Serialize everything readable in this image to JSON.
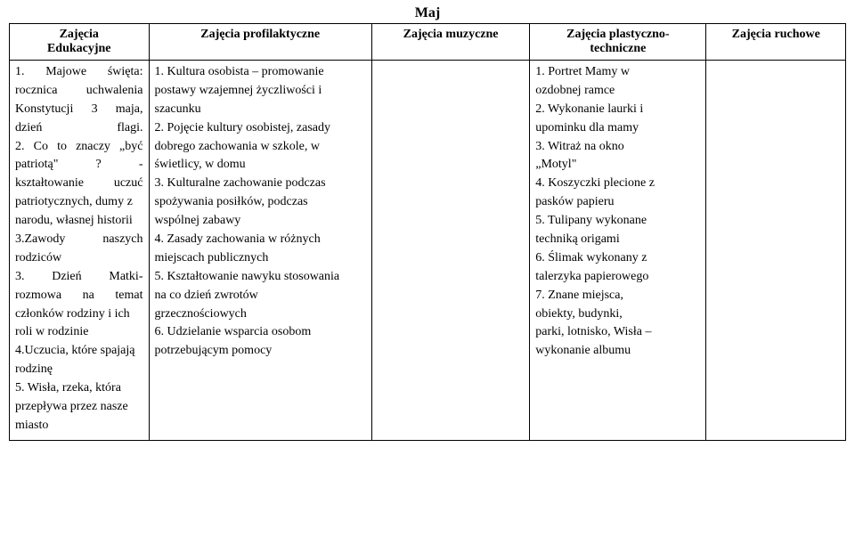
{
  "month": "Maj",
  "headers": {
    "col1_line1": "Zajęcia",
    "col1_line2": "Edukacyjne",
    "col2": "Zajęcia profilaktyczne",
    "col3": "Zajęcia muzyczne",
    "col4_line1": "Zajęcia plastyczno-",
    "col4_line2": "techniczne",
    "col5": "Zajęcia ruchowe"
  },
  "col1": {
    "l1a": "1.",
    "l1b": "Majowe",
    "l1c": "święta:",
    "l2a": "rocznica",
    "l2b": "uchwalenia",
    "l3a": "Konstytucji",
    "l3b": "3",
    "l3c": "maja,",
    "l4a": "dzień",
    "l4b": "flagi.",
    "l5a": "2.",
    "l5b": "Co",
    "l5c": "to",
    "l5d": "znaczy",
    "l5e": "„być",
    "l6a": "patriotą\"",
    "l6b": "?",
    "l6c": "-",
    "l7a": "kształtowanie",
    "l7b": "uczuć",
    "l8": "patriotycznych, dumy z",
    "l9": "narodu, własnej historii",
    "l10a": "3.Zawody",
    "l10b": "naszych",
    "l11": "rodziców",
    "l12a": "3.",
    "l12b": "Dzień",
    "l12c": "Matki-",
    "l13a": "rozmowa",
    "l13b": "na",
    "l13c": "temat",
    "l14": "członków rodziny i ich",
    "l15": "roli w rodzinie",
    "l16": "4.Uczucia, które spajają",
    "l17": "rodzinę",
    "l18": "5. Wisła, rzeka, która",
    "l19": "przepływa przez nasze",
    "l20": "miasto"
  },
  "col2": {
    "l1": "1. Kultura osobista – promowanie",
    "l2": "postawy wzajemnej życzliwości i",
    "l3": "szacunku",
    "l4": "2. Pojęcie kultury osobistej, zasady",
    "l5": "dobrego zachowania w szkole, w",
    "l6": "świetlicy, w domu",
    "l7": "3. Kulturalne zachowanie podczas",
    "l8": "spożywania posiłków, podczas",
    "l9": "wspólnej zabawy",
    "l10": "4. Zasady zachowania w różnych",
    "l11": "miejscach publicznych",
    "l12": "5. Kształtowanie nawyku stosowania",
    "l13": "na co dzień zwrotów",
    "l14": "grzecznościowych",
    "l15": "6. Udzielanie wsparcia osobom",
    "l16": "potrzebującym pomocy"
  },
  "col4": {
    "l1": "1. Portret Mamy w",
    "l2": "ozdobnej ramce",
    "l3": "2. Wykonanie laurki i",
    "l4": "upominku dla mamy",
    "l5": "3. Witraż na okno",
    "l6": "„Motyl\"",
    "l7": "4. Koszyczki plecione z",
    "l8": "pasków papieru",
    "l9": "5. Tulipany wykonane",
    "l10": "techniką origami",
    "l11": "6. Ślimak wykonany z",
    "l12": "talerzyka papierowego",
    "l13": "7. Znane miejsca,",
    "l14": "obiekty, budynki,",
    "l15": "parki, lotnisko, Wisła –",
    "l16": "wykonanie albumu"
  }
}
